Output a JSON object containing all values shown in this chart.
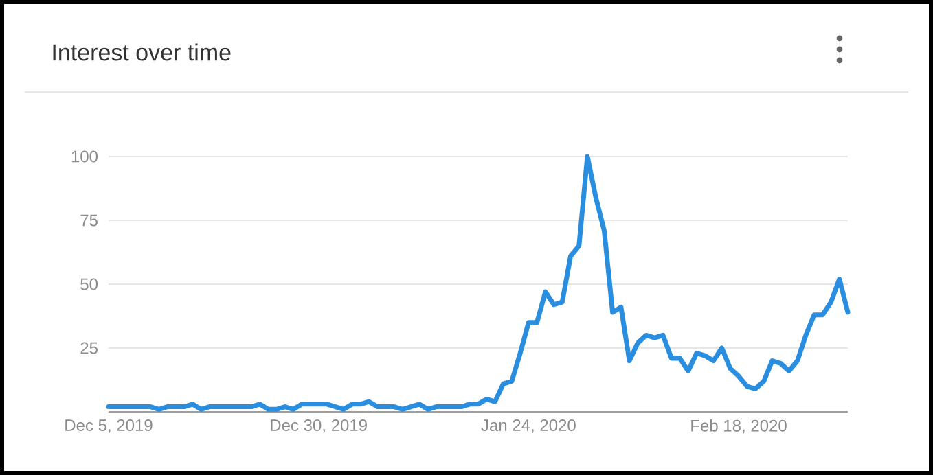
{
  "chart_data": {
    "type": "line",
    "title": "Interest over time",
    "x": [
      "2019-12-05",
      "2019-12-06",
      "2019-12-07",
      "2019-12-08",
      "2019-12-09",
      "2019-12-10",
      "2019-12-11",
      "2019-12-12",
      "2019-12-13",
      "2019-12-14",
      "2019-12-15",
      "2019-12-16",
      "2019-12-17",
      "2019-12-18",
      "2019-12-19",
      "2019-12-20",
      "2019-12-21",
      "2019-12-22",
      "2019-12-23",
      "2019-12-24",
      "2019-12-25",
      "2019-12-26",
      "2019-12-27",
      "2019-12-28",
      "2019-12-29",
      "2019-12-30",
      "2019-12-31",
      "2020-01-01",
      "2020-01-02",
      "2020-01-03",
      "2020-01-04",
      "2020-01-05",
      "2020-01-06",
      "2020-01-07",
      "2020-01-08",
      "2020-01-09",
      "2020-01-10",
      "2020-01-11",
      "2020-01-12",
      "2020-01-13",
      "2020-01-14",
      "2020-01-15",
      "2020-01-16",
      "2020-01-17",
      "2020-01-18",
      "2020-01-19",
      "2020-01-20",
      "2020-01-21",
      "2020-01-22",
      "2020-01-23",
      "2020-01-24",
      "2020-01-25",
      "2020-01-26",
      "2020-01-27",
      "2020-01-28",
      "2020-01-29",
      "2020-01-30",
      "2020-01-31",
      "2020-02-01",
      "2020-02-02",
      "2020-02-03",
      "2020-02-04",
      "2020-02-05",
      "2020-02-06",
      "2020-02-07",
      "2020-02-08",
      "2020-02-09",
      "2020-02-10",
      "2020-02-11",
      "2020-02-12",
      "2020-02-13",
      "2020-02-14",
      "2020-02-15",
      "2020-02-16",
      "2020-02-17",
      "2020-02-18",
      "2020-02-19",
      "2020-02-20",
      "2020-02-21",
      "2020-02-22",
      "2020-02-23",
      "2020-02-24",
      "2020-02-25",
      "2020-02-26",
      "2020-02-27",
      "2020-02-28",
      "2020-02-29",
      "2020-03-01",
      "2020-03-02"
    ],
    "series": [
      {
        "color": "#2a8ee0",
        "values": [
          2,
          2,
          2,
          2,
          2,
          2,
          1,
          2,
          2,
          2,
          3,
          1,
          2,
          2,
          2,
          2,
          2,
          2,
          3,
          1,
          1,
          2,
          1,
          3,
          3,
          3,
          3,
          2,
          1,
          3,
          3,
          4,
          2,
          2,
          2,
          1,
          2,
          3,
          1,
          2,
          2,
          2,
          2,
          3,
          3,
          5,
          4,
          11,
          12,
          23,
          35,
          35,
          47,
          42,
          43,
          61,
          65,
          100,
          84,
          71,
          39,
          41,
          20,
          27,
          30,
          29,
          30,
          21,
          21,
          16,
          23,
          22,
          20,
          25,
          17,
          14,
          10,
          9,
          12,
          20,
          19,
          16,
          20,
          30,
          38,
          38,
          43,
          52,
          39
        ]
      }
    ],
    "xlim": [
      "2019-12-05",
      "2020-03-02"
    ],
    "xticks": [
      {
        "value": "2019-12-05",
        "label": "Dec 5, 2019"
      },
      {
        "value": "2019-12-30",
        "label": "Dec 30, 2019"
      },
      {
        "value": "2020-01-24",
        "label": "Jan 24, 2020"
      },
      {
        "value": "2020-02-18",
        "label": "Feb 18, 2020"
      }
    ],
    "ylim": [
      0,
      100
    ],
    "yticks": [
      25,
      50,
      75,
      100
    ],
    "grid": "y"
  }
}
